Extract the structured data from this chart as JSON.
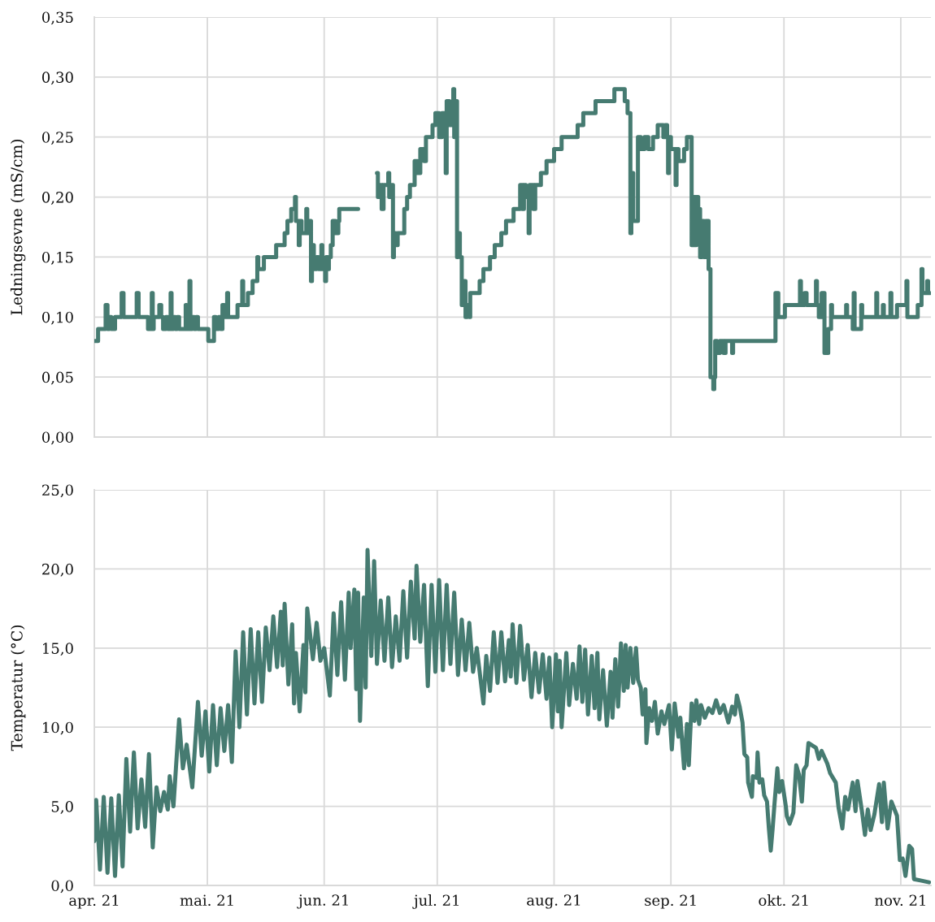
{
  "chart_data": [
    {
      "type": "step",
      "ylabel": "Ledningsevne (mS/cm)",
      "grid": true,
      "tick_labels": "y",
      "xlim": [
        "2021-04-01",
        "2021-11-09"
      ],
      "xticks": [
        {
          "value": "2021-04-01",
          "label": null
        },
        {
          "value": "2021-05-01",
          "label": null
        },
        {
          "value": "2021-06-01",
          "label": null
        },
        {
          "value": "2021-07-01",
          "label": null
        },
        {
          "value": "2021-08-01",
          "label": null
        },
        {
          "value": "2021-09-01",
          "label": null
        },
        {
          "value": "2021-10-01",
          "label": null
        },
        {
          "value": "2021-11-01",
          "label": null
        }
      ],
      "ylim": [
        0,
        0.35
      ],
      "yticks": [
        {
          "value": 0,
          "label": "0,00"
        },
        {
          "value": 0.05,
          "label": "0,05"
        },
        {
          "value": 0.1,
          "label": "0,10"
        },
        {
          "value": 0.15,
          "label": "0,15"
        },
        {
          "value": 0.2,
          "label": "0,20"
        },
        {
          "value": 0.25,
          "label": "0,25"
        },
        {
          "value": 0.3,
          "label": "0,30"
        },
        {
          "value": 0.35,
          "label": "0,35"
        }
      ],
      "series": [
        {
          "color": "#467b71",
          "x": [
            "2021-04-01T00:00",
            "2021-04-02T00:00",
            "2021-04-04T00:00",
            "2021-04-04T12:00",
            "2021-04-05T00:00",
            "2021-04-05T12:00",
            "2021-04-06T12:00",
            "2021-04-08T06:00",
            "2021-04-08T18:00",
            "2021-04-12T06:00",
            "2021-04-12T18:00",
            "2021-04-15T06:00",
            "2021-04-16T06:00",
            "2021-04-16T12:00",
            "2021-04-16T18:00",
            "2021-04-18T06:00",
            "2021-04-18T18:00",
            "2021-04-19T06:00",
            "2021-04-20T00:00",
            "2021-04-20T12:00",
            "2021-04-21T06:00",
            "2021-04-21T12:00",
            "2021-04-22T00:00",
            "2021-04-22T12:00",
            "2021-04-23T00:00",
            "2021-04-23T12:00",
            "2021-04-25T06:00",
            "2021-04-25T12:00",
            "2021-04-26T06:00",
            "2021-04-26T12:00",
            "2021-04-27T00:00",
            "2021-04-27T12:00",
            "2021-04-28T00:00",
            "2021-04-28T12:00",
            "2021-05-01T06:00",
            "2021-05-02T18:00",
            "2021-05-03T06:00",
            "2021-05-04T00:00",
            "2021-05-04T12:00",
            "2021-05-05T00:00",
            "2021-05-05T12:00",
            "2021-05-06T06:00",
            "2021-05-06T12:00",
            "2021-05-09T00:00",
            "2021-05-10T06:00",
            "2021-05-10T12:00",
            "2021-05-11T18:00",
            "2021-05-13T00:00",
            "2021-05-14T06:00",
            "2021-05-14T12:00",
            "2021-05-16T00:00",
            "2021-05-19T06:00",
            "2021-05-21T12:00",
            "2021-05-22T06:00",
            "2021-05-23T06:00",
            "2021-05-24T06:00",
            "2021-05-24T12:00",
            "2021-05-25T06:00",
            "2021-05-25T12:00",
            "2021-05-26T00:00",
            "2021-05-27T06:00",
            "2021-05-27T12:00",
            "2021-05-28T00:00",
            "2021-05-28T12:00",
            "2021-05-28T18:00",
            "2021-05-29T06:00",
            "2021-05-30T00:00",
            "2021-05-30T12:00",
            "2021-05-31T06:00",
            "2021-05-31T12:00",
            "2021-06-01T06:00",
            "2021-06-01T12:00",
            "2021-06-02T00:00",
            "2021-06-02T06:00",
            "2021-06-02T18:00",
            "2021-06-03T06:00",
            "2021-06-04T00:00",
            "2021-06-04T18:00",
            "2021-06-05T00:00",
            "2021-06-06T12:00",
            "2021-06-10T00:00",
            "2021-06-15T00:00",
            "2021-06-15T06:00",
            "2021-06-15T18:00",
            "2021-06-16T06:00",
            "2021-06-16T18:00",
            "2021-06-18T00:00",
            "2021-06-18T06:00",
            "2021-06-18T18:00",
            "2021-06-19T06:00",
            "2021-06-19T12:00",
            "2021-06-20T00:00",
            "2021-06-20T12:00",
            "2021-06-22T06:00",
            "2021-06-23T00:00",
            "2021-06-23T18:00",
            "2021-06-25T00:00",
            "2021-06-25T18:00",
            "2021-06-26T12:00",
            "2021-06-27T12:00",
            "2021-06-28T00:00",
            "2021-06-29T18:00",
            "2021-06-30T12:00",
            "2021-07-01T12:00",
            "2021-07-02T06:00",
            "2021-07-03T06:00",
            "2021-07-03T12:00",
            "2021-07-04T06:00",
            "2021-07-05T06:00",
            "2021-07-05T12:00",
            "2021-07-06T00:00",
            "2021-07-06T06:00",
            "2021-07-06T12:00",
            "2021-07-07T00:00",
            "2021-07-07T12:00",
            "2021-07-08T00:00",
            "2021-07-08T12:00",
            "2021-07-09T00:00",
            "2021-07-09T12:00",
            "2021-07-09T18:00",
            "2021-07-12T06:00",
            "2021-07-13T06:00",
            "2021-07-15T00:00",
            "2021-07-16T06:00",
            "2021-07-18T00:00",
            "2021-07-19T06:00",
            "2021-07-21T06:00",
            "2021-07-23T00:00",
            "2021-07-23T12:00",
            "2021-07-24T00:00",
            "2021-07-24T12:00",
            "2021-07-25T06:00",
            "2021-07-25T12:00",
            "2021-07-26T12:00",
            "2021-07-27T00:00",
            "2021-07-28T12:00",
            "2021-07-30T00:00",
            "2021-08-01T00:00",
            "2021-08-03T00:00",
            "2021-08-07T06:00",
            "2021-08-08T18:00",
            "2021-08-12T00:00",
            "2021-08-17T00:00",
            "2021-08-19T18:00",
            "2021-08-20T12:00",
            "2021-08-21T06:00",
            "2021-08-21T12:00",
            "2021-08-22T00:00",
            "2021-08-23T06:00",
            "2021-08-24T00:00",
            "2021-08-25T00:00",
            "2021-08-26T00:00",
            "2021-08-27T06:00",
            "2021-08-28T12:00",
            "2021-08-30T00:00",
            "2021-08-30T12:00",
            "2021-08-31T00:00",
            "2021-08-31T06:00",
            "2021-08-31T12:00",
            "2021-09-01T00:00",
            "2021-09-02T06:00",
            "2021-09-02T12:00",
            "2021-09-03T00:00",
            "2021-09-04T12:00",
            "2021-09-05T06:00",
            "2021-09-06T12:00",
            "2021-09-07T00:00",
            "2021-09-07T06:00",
            "2021-09-07T18:00",
            "2021-09-08T06:00",
            "2021-09-08T18:00",
            "2021-09-09T06:00",
            "2021-09-09T18:00",
            "2021-09-10T06:00",
            "2021-09-11T00:00",
            "2021-09-11T12:00",
            "2021-09-12T06:00",
            "2021-09-12T12:00",
            "2021-09-12T18:00",
            "2021-09-13T06:00",
            "2021-09-14T00:00",
            "2021-09-15T00:00",
            "2021-09-15T12:00",
            "2021-09-17T06:00",
            "2021-09-17T12:00",
            "2021-09-28T18:00",
            "2021-09-29T12:00",
            "2021-10-01T06:00",
            "2021-10-05T06:00",
            "2021-10-05T12:00",
            "2021-10-06T12:00",
            "2021-10-07T00:00",
            "2021-10-09T12:00",
            "2021-10-09T18:00",
            "2021-10-10T06:00",
            "2021-10-11T00:00",
            "2021-10-11T18:00",
            "2021-10-12T18:00",
            "2021-10-13T12:00",
            "2021-10-13T18:00",
            "2021-10-17T12:00",
            "2021-10-17T18:00",
            "2021-10-19T06:00",
            "2021-10-19T12:00",
            "2021-10-19T18:00",
            "2021-10-21T12:00",
            "2021-10-21T18:00",
            "2021-10-25T12:00",
            "2021-10-25T18:00",
            "2021-10-27T06:00",
            "2021-10-27T12:00",
            "2021-10-29T06:00",
            "2021-10-29T12:00",
            "2021-10-31T00:00",
            "2021-11-02T12:00",
            "2021-11-02T18:00",
            "2021-11-05T12:00",
            "2021-11-06T12:00",
            "2021-11-06T18:00",
            "2021-11-08T00:00",
            "2021-11-08T06:00",
            "2021-11-08T18:00"
          ],
          "values": [
            0.08,
            0.09,
            0.11,
            0.09,
            0.1,
            0.09,
            0.1,
            0.12,
            0.1,
            0.12,
            0.1,
            0.09,
            0.12,
            0.09,
            0.1,
            0.11,
            0.1,
            0.09,
            0.1,
            0.09,
            0.12,
            0.09,
            0.1,
            0.09,
            0.1,
            0.09,
            0.11,
            0.09,
            0.13,
            0.09,
            0.1,
            0.09,
            0.1,
            0.09,
            0.08,
            0.1,
            0.09,
            0.1,
            0.09,
            0.11,
            0.1,
            0.12,
            0.1,
            0.11,
            0.13,
            0.11,
            0.12,
            0.13,
            0.15,
            0.14,
            0.15,
            0.16,
            0.17,
            0.18,
            0.19,
            0.2,
            0.18,
            0.16,
            0.18,
            0.17,
            0.19,
            0.17,
            0.18,
            0.13,
            0.16,
            0.14,
            0.15,
            0.14,
            0.16,
            0.14,
            0.13,
            0.15,
            0.14,
            0.15,
            0.16,
            0.18,
            0.17,
            0.18,
            0.19,
            0.19,
            null,
            0.22,
            0.2,
            0.21,
            0.19,
            0.21,
            0.22,
            0.2,
            0.21,
            0.15,
            0.17,
            0.16,
            0.17,
            0.19,
            0.2,
            0.21,
            0.23,
            0.22,
            0.24,
            0.23,
            0.25,
            0.26,
            0.27,
            0.25,
            0.27,
            0.22,
            0.28,
            0.26,
            0.29,
            0.25,
            0.28,
            0.15,
            0.17,
            0.15,
            0.11,
            0.13,
            0.1,
            0.11,
            0.1,
            0.12,
            0.13,
            0.14,
            0.15,
            0.16,
            0.17,
            0.18,
            0.19,
            0.21,
            0.19,
            0.21,
            0.2,
            0.17,
            0.21,
            0.19,
            0.21,
            0.22,
            0.23,
            0.24,
            0.25,
            0.26,
            0.27,
            0.28,
            0.29,
            0.28,
            0.27,
            0.17,
            0.22,
            0.18,
            0.25,
            0.24,
            0.25,
            0.24,
            0.25,
            0.26,
            0.25,
            0.26,
            0.25,
            0.22,
            0.25,
            0.24,
            0.21,
            0.24,
            0.23,
            0.24,
            0.25,
            0.16,
            0.2,
            0.16,
            0.2,
            0.19,
            0.15,
            0.18,
            0.15,
            0.18,
            0.14,
            0.05,
            0.04,
            0.05,
            0.08,
            0.07,
            0.08,
            0.07,
            0.08,
            0.07,
            0.08,
            0.12,
            0.1,
            0.11,
            0.13,
            0.11,
            0.12,
            0.11,
            0.13,
            0.11,
            0.1,
            0.12,
            0.07,
            0.09,
            0.11,
            0.1,
            0.11,
            0.1,
            0.09,
            0.12,
            0.09,
            0.11,
            0.1,
            0.12,
            0.1,
            0.11,
            0.1,
            0.12,
            0.1,
            0.11,
            0.13,
            0.1,
            0.11,
            0.14,
            0.12,
            0.13,
            0.12,
            0.12
          ]
        }
      ]
    },
    {
      "type": "line",
      "ylabel": "Temperatur (°C)",
      "grid": true,
      "xlim": [
        "2021-04-01",
        "2021-11-09"
      ],
      "xticks": [
        {
          "value": "2021-04-01",
          "label": "apr. 21"
        },
        {
          "value": "2021-05-01",
          "label": "mai. 21"
        },
        {
          "value": "2021-06-01",
          "label": "jun. 21"
        },
        {
          "value": "2021-07-01",
          "label": "jul. 21"
        },
        {
          "value": "2021-08-01",
          "label": "aug. 21"
        },
        {
          "value": "2021-09-01",
          "label": "sep. 21"
        },
        {
          "value": "2021-10-01",
          "label": "okt. 21"
        },
        {
          "value": "2021-11-01",
          "label": "nov. 21"
        }
      ],
      "ylim": [
        0,
        25
      ],
      "yticks": [
        {
          "value": 0,
          "label": "0,0"
        },
        {
          "value": 5,
          "label": "5,0"
        },
        {
          "value": 10,
          "label": "10,0"
        },
        {
          "value": 15,
          "label": "15,0"
        },
        {
          "value": 20,
          "label": "20,0"
        },
        {
          "value": 25,
          "label": "25,0"
        }
      ],
      "series": [
        {
          "color": "#467b71",
          "x": [
            "2021-04-01T00:00",
            "2021-04-01T12:00",
            "2021-04-02T12:00",
            "2021-04-03T12:00",
            "2021-04-04T12:00",
            "2021-04-05T12:00",
            "2021-04-06T12:00",
            "2021-04-07T12:00",
            "2021-04-08T12:00",
            "2021-04-09T12:00",
            "2021-04-10T12:00",
            "2021-04-11T12:00",
            "2021-04-12T12:00",
            "2021-04-13T12:00",
            "2021-04-14T12:00",
            "2021-04-15T12:00",
            "2021-04-16T12:00",
            "2021-04-17T12:00",
            "2021-04-18T12:00",
            "2021-04-19T12:00",
            "2021-04-20T12:00",
            "2021-04-21T00:00",
            "2021-04-22T00:00",
            "2021-04-23T12:00",
            "2021-04-24T12:00",
            "2021-04-25T12:00",
            "2021-04-27T00:00",
            "2021-04-28T12:00",
            "2021-04-29T12:00",
            "2021-04-30T12:00",
            "2021-05-01T12:00",
            "2021-05-02T12:00",
            "2021-05-03T12:00",
            "2021-05-04T12:00",
            "2021-05-05T12:00",
            "2021-05-06T12:00",
            "2021-05-07T12:00",
            "2021-05-08T12:00",
            "2021-05-09T12:00",
            "2021-05-10T12:00",
            "2021-05-11T12:00",
            "2021-05-12T12:00",
            "2021-05-13T12:00",
            "2021-05-14T12:00",
            "2021-05-15T12:00",
            "2021-05-16T12:00",
            "2021-05-17T12:00",
            "2021-05-18T12:00",
            "2021-05-19T12:00",
            "2021-05-20T12:00",
            "2021-05-21T00:00",
            "2021-05-21T12:00",
            "2021-05-22T12:00",
            "2021-05-23T12:00",
            "2021-05-24T00:00",
            "2021-05-24T12:00",
            "2021-05-25T12:00",
            "2021-05-26T12:00",
            "2021-05-27T00:00",
            "2021-05-27T12:00",
            "2021-05-29T00:00",
            "2021-05-30T00:00",
            "2021-05-31T00:00",
            "2021-06-01T00:00",
            "2021-06-02T12:00",
            "2021-06-03T12:00",
            "2021-06-04T12:00",
            "2021-06-05T12:00",
            "2021-06-06T12:00",
            "2021-06-07T12:00",
            "2021-06-08T00:00",
            "2021-06-09T00:00",
            "2021-06-09T12:00",
            "2021-06-10T00:00",
            "2021-06-10T12:00",
            "2021-06-11T12:00",
            "2021-06-12T00:00",
            "2021-06-12T12:00",
            "2021-06-13T12:00",
            "2021-06-14T06:00",
            "2021-06-15T00:00",
            "2021-06-16T00:00",
            "2021-06-17T00:00",
            "2021-06-18T00:00",
            "2021-06-19T00:00",
            "2021-06-20T00:00",
            "2021-06-21T00:00",
            "2021-06-22T00:00",
            "2021-06-23T00:00",
            "2021-06-24T00:00",
            "2021-06-25T00:00",
            "2021-06-25T12:00",
            "2021-06-26T12:00",
            "2021-06-27T12:00",
            "2021-06-28T12:00",
            "2021-06-29T12:00",
            "2021-06-30T12:00",
            "2021-07-01T12:00",
            "2021-07-02T12:00",
            "2021-07-03T12:00",
            "2021-07-04T12:00",
            "2021-07-05T12:00",
            "2021-07-06T12:00",
            "2021-07-07T12:00",
            "2021-07-08T12:00",
            "2021-07-09T12:00",
            "2021-07-10T12:00",
            "2021-07-11T12:00",
            "2021-07-12T12:00",
            "2021-07-13T06:00",
            "2021-07-14T00:00",
            "2021-07-15T00:00",
            "2021-07-16T00:00",
            "2021-07-17T00:00",
            "2021-07-18T00:00",
            "2021-07-19T00:00",
            "2021-07-20T00:00",
            "2021-07-20T12:00",
            "2021-07-21T00:00",
            "2021-07-22T00:00",
            "2021-07-23T00:00",
            "2021-07-24T00:00",
            "2021-07-25T00:00",
            "2021-07-26T00:00",
            "2021-07-27T00:00",
            "2021-07-28T00:00",
            "2021-07-29T00:00",
            "2021-07-30T00:00",
            "2021-07-30T18:00",
            "2021-07-31T12:00",
            "2021-08-01T12:00",
            "2021-08-02T00:00",
            "2021-08-02T12:00",
            "2021-08-03T00:00",
            "2021-08-04T06:00",
            "2021-08-05T00:00",
            "2021-08-06T00:00",
            "2021-08-07T00:00",
            "2021-08-07T18:00",
            "2021-08-08T12:00",
            "2021-08-09T06:00",
            "2021-08-10T00:00",
            "2021-08-11T00:00",
            "2021-08-11T18:00",
            "2021-08-12T12:00",
            "2021-08-13T00:00",
            "2021-08-14T00:00",
            "2021-08-15T00:00",
            "2021-08-16T00:00",
            "2021-08-16T12:00",
            "2021-08-17T06:00",
            "2021-08-18T00:00",
            "2021-08-18T18:00",
            "2021-08-19T12:00",
            "2021-08-20T00:00",
            "2021-08-20T12:00",
            "2021-08-21T06:00",
            "2021-08-22T00:00",
            "2021-08-22T18:00",
            "2021-08-23T06:00",
            "2021-08-24T00:00",
            "2021-08-24T12:00",
            "2021-08-25T06:00",
            "2021-08-25T12:00",
            "2021-08-26T06:00",
            "2021-08-27T00:00",
            "2021-08-27T18:00",
            "2021-08-28T12:00",
            "2021-08-29T12:00",
            "2021-08-30T06:00",
            "2021-08-31T12:00",
            "2021-09-01T06:00",
            "2021-09-02T00:00",
            "2021-09-03T00:00",
            "2021-09-03T12:00",
            "2021-09-04T12:00",
            "2021-09-05T06:00",
            "2021-09-05T18:00",
            "2021-09-06T12:00",
            "2021-09-07T06:00",
            "2021-09-07T18:00",
            "2021-09-08T12:00",
            "2021-09-09T00:00",
            "2021-09-10T00:00",
            "2021-09-11T00:00",
            "2021-09-12T00:00",
            "2021-09-13T00:00",
            "2021-09-14T00:00",
            "2021-09-15T00:00",
            "2021-09-16T06:00",
            "2021-09-17T06:00",
            "2021-09-18T00:00",
            "2021-09-18T12:00",
            "2021-09-19T06:00",
            "2021-09-20T00:00",
            "2021-09-20T12:00",
            "2021-09-21T06:00",
            "2021-09-21T12:00",
            "2021-09-22T12:00",
            "2021-09-22T18:00",
            "2021-09-23T18:00",
            "2021-09-24T00:00",
            "2021-09-24T12:00",
            "2021-09-25T06:00",
            "2021-09-25T18:00",
            "2021-09-26T12:00",
            "2021-09-27T00:00",
            "2021-09-27T12:00",
            "2021-09-28T00:00",
            "2021-09-28T12:00",
            "2021-09-29T06:00",
            "2021-09-29T18:00",
            "2021-09-30T12:00",
            "2021-10-01T12:00",
            "2021-10-01T18:00",
            "2021-10-02T12:00",
            "2021-10-03T12:00",
            "2021-10-04T06:00",
            "2021-10-05T00:00",
            "2021-10-05T18:00",
            "2021-10-06T06:00",
            "2021-10-07T00:00",
            "2021-10-07T12:00",
            "2021-10-09T12:00",
            "2021-10-10T06:00",
            "2021-10-11T00:00",
            "2021-10-12T12:00",
            "2021-10-13T06:00",
            "2021-10-14T18:00",
            "2021-10-15T12:00",
            "2021-10-16T12:00",
            "2021-10-17T06:00",
            "2021-10-18T00:00",
            "2021-10-19T06:00",
            "2021-10-20T00:00",
            "2021-10-20T12:00",
            "2021-10-21T18:00",
            "2021-10-22T12:00",
            "2021-10-23T06:00",
            "2021-10-24T00:00",
            "2021-10-25T00:00",
            "2021-10-26T06:00",
            "2021-10-27T00:00",
            "2021-10-27T12:00",
            "2021-10-28T12:00",
            "2021-10-29T12:00",
            "2021-10-31T00:00",
            "2021-10-31T18:00",
            "2021-11-01T12:00",
            "2021-11-02T06:00",
            "2021-11-03T06:00",
            "2021-11-04T00:00",
            "2021-11-04T12:00",
            "2021-11-06T12:00",
            "2021-11-08T12:00"
          ],
          "values": [
            2.8,
            5.4,
            1.0,
            5.6,
            0.8,
            5.5,
            0.6,
            5.7,
            1.2,
            8.0,
            3.4,
            8.4,
            3.6,
            6.7,
            3.7,
            8.3,
            2.4,
            6.2,
            4.7,
            5.9,
            4.8,
            6.9,
            5.0,
            10.5,
            7.4,
            8.9,
            6.2,
            11.6,
            8.2,
            11.0,
            7.2,
            11.4,
            7.6,
            11.2,
            8.5,
            11.4,
            7.8,
            14.8,
            10.0,
            16.0,
            10.8,
            16.2,
            11.5,
            16.0,
            11.6,
            16.3,
            13.6,
            17.0,
            13.8,
            17.3,
            13.9,
            17.8,
            12.7,
            16.5,
            11.5,
            14.7,
            11.0,
            15.2,
            12.2,
            17.5,
            14.3,
            16.6,
            14.2,
            15.0,
            12.0,
            17.2,
            13.3,
            17.9,
            13.0,
            18.5,
            15.0,
            18.7,
            12.4,
            18.5,
            10.4,
            18.2,
            12.5,
            21.2,
            14.5,
            20.5,
            14.0,
            18.0,
            14.2,
            18.2,
            13.8,
            17.0,
            14.2,
            18.6,
            14.4,
            19.2,
            15.6,
            20.2,
            15.4,
            19.0,
            12.6,
            19.0,
            13.5,
            19.3,
            13.6,
            19.0,
            14.0,
            18.5,
            13.3,
            16.8,
            13.6,
            16.6,
            13.5,
            15.0,
            13.0,
            11.5,
            14.5,
            12.3,
            16.0,
            12.8,
            16.0,
            12.9,
            15.5,
            13.2,
            16.5,
            12.8,
            16.4,
            13.0,
            15.2,
            11.9,
            14.7,
            12.2,
            14.6,
            11.8,
            14.4,
            10.0,
            14.6,
            11.0,
            14.2,
            10.0,
            14.7,
            11.4,
            14.0,
            11.8,
            15.1,
            11.6,
            14.9,
            10.8,
            14.5,
            11.2,
            14.7,
            10.5,
            13.6,
            10.1,
            13.5,
            10.6,
            14.3,
            11.3,
            15.3,
            12.3,
            15.2,
            12.5,
            15.0,
            12.8,
            15.0,
            13.0,
            12.5,
            10.8,
            12.4,
            9.0,
            11.2,
            10.4,
            11.6,
            9.6,
            11.0,
            10.2,
            11.4,
            8.6,
            11.5,
            9.4,
            10.6,
            7.4,
            10.2,
            7.6,
            11.5,
            10.4,
            11.7,
            10.2,
            11.4,
            10.6,
            11.2,
            10.9,
            11.7,
            10.9,
            11.4,
            10.3,
            11.3,
            10.8,
            12.0,
            11.3,
            10.3,
            8.3,
            8.1,
            6.5,
            5.6,
            6.9,
            6.8,
            8.4,
            6.5,
            6.7,
            5.7,
            5.3,
            3.6,
            2.2,
            3.6,
            5.2,
            7.4,
            5.9,
            6.6,
            5.0,
            4.4,
            3.9,
            4.6,
            7.6,
            7.0,
            5.3,
            7.3,
            7.6,
            9.0,
            8.7,
            8.0,
            8.5,
            7.7,
            7.1,
            6.5,
            4.9,
            3.6,
            5.6,
            4.8,
            6.5,
            4.7,
            6.6,
            4.6,
            3.2,
            4.8,
            3.5,
            4.5,
            6.4,
            4.0,
            6.5,
            3.6,
            5.3,
            4.4,
            1.6,
            1.7,
            0.6,
            2.5,
            2.3,
            0.4,
            0.3,
            0.2
          ]
        }
      ]
    }
  ]
}
